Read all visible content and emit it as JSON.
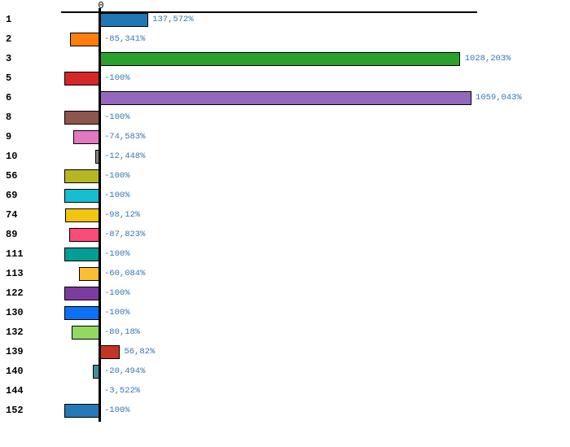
{
  "chart_data": {
    "type": "bar",
    "orientation": "horizontal",
    "zero_label": "0",
    "unit": "%",
    "grid": false,
    "legend": "none",
    "xlim": [
      -110,
      1100
    ],
    "categories": [
      "1",
      "2",
      "3",
      "5",
      "6",
      "8",
      "9",
      "10",
      "56",
      "69",
      "74",
      "89",
      "111",
      "113",
      "122",
      "130",
      "132",
      "139",
      "140",
      "144",
      "152"
    ],
    "values": [
      137.572,
      -85.341,
      1028.203,
      -100,
      1059.043,
      -100,
      -74.583,
      -12.448,
      -100,
      -100,
      -98.12,
      -87.823,
      -100,
      -60.084,
      -100,
      -100,
      -80.18,
      56.82,
      -20.494,
      -3.522,
      -100
    ],
    "value_labels": [
      "137,572%",
      "-85,341%",
      "1028,203%",
      "-100%",
      "1059,043%",
      "-100%",
      "-74,583%",
      "-12,448%",
      "-100%",
      "-100%",
      "-98,12%",
      "-87,823%",
      "-100%",
      "-60,084%",
      "-100%",
      "-100%",
      "-80,18%",
      "56,82%",
      "-20,494%",
      "-3,522%",
      "-100%"
    ],
    "bar_colors": [
      "#1F77B4",
      "#FF7F0E",
      "#2CA02C",
      "#D62728",
      "#9467BD",
      "#8C564B",
      "#E377C2",
      "#848484",
      "#B5B722",
      "#17BECF",
      "#F2C50F",
      "#FB4B78",
      "#029E93",
      "#FBBE33",
      "#7C3C9E",
      "#0B72F5",
      "#90DA64",
      "#C53426",
      "#42909F",
      "#222222",
      "#2679B8"
    ],
    "value_label_color": "#3577B5",
    "axis_color": "#000000"
  }
}
